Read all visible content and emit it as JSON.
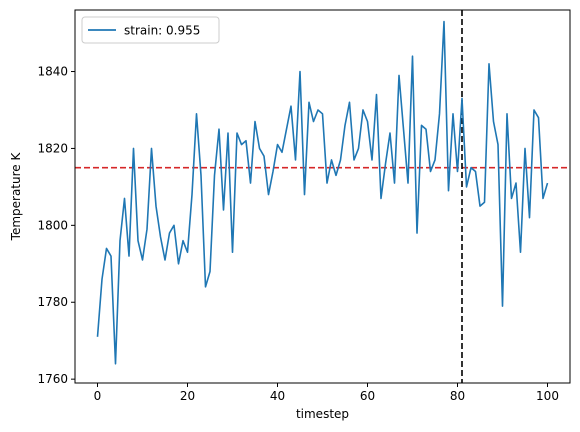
{
  "chart_data": {
    "type": "line",
    "title": "",
    "xlabel": "timestep",
    "ylabel": "Temperature K",
    "xlim": [
      -5,
      105
    ],
    "ylim": [
      1759,
      1856
    ],
    "xticks": [
      0,
      20,
      40,
      60,
      80,
      100
    ],
    "yticks": [
      1760,
      1780,
      1800,
      1820,
      1840
    ],
    "grid": false,
    "legend": {
      "placement": "top-left"
    },
    "series": [
      {
        "name": "strain: 0.955",
        "color": "#1f77b4",
        "x": [
          0,
          1,
          2,
          3,
          4,
          5,
          6,
          7,
          8,
          9,
          10,
          11,
          12,
          13,
          14,
          15,
          16,
          17,
          18,
          19,
          20,
          21,
          22,
          23,
          24,
          25,
          26,
          27,
          28,
          29,
          30,
          31,
          32,
          33,
          34,
          35,
          36,
          37,
          38,
          39,
          40,
          41,
          42,
          43,
          44,
          45,
          46,
          47,
          48,
          49,
          50,
          51,
          52,
          53,
          54,
          55,
          56,
          57,
          58,
          59,
          60,
          61,
          62,
          63,
          64,
          65,
          66,
          67,
          68,
          69,
          70,
          71,
          72,
          73,
          74,
          75,
          76,
          77,
          78,
          79,
          80,
          81,
          82,
          83,
          84,
          85,
          86,
          87,
          88,
          89,
          90,
          91,
          92,
          93,
          94,
          95,
          96,
          97,
          98,
          99,
          100
        ],
        "y": [
          1771,
          1786,
          1794,
          1792,
          1764,
          1796,
          1807,
          1792,
          1820,
          1796,
          1791,
          1799,
          1820,
          1805,
          1797,
          1791,
          1798,
          1800,
          1790,
          1796,
          1793,
          1808,
          1829,
          1813,
          1784,
          1788,
          1813,
          1825,
          1804,
          1824,
          1793,
          1824,
          1821,
          1822,
          1811,
          1827,
          1820,
          1818,
          1808,
          1814,
          1821,
          1819,
          1825,
          1831,
          1817,
          1840,
          1808,
          1832,
          1827,
          1830,
          1829,
          1811,
          1817,
          1813,
          1817,
          1826,
          1832,
          1817,
          1820,
          1830,
          1827,
          1817,
          1834,
          1807,
          1816,
          1824,
          1811,
          1839,
          1825,
          1811,
          1844,
          1798,
          1826,
          1825,
          1814,
          1817,
          1829,
          1853,
          1809,
          1829,
          1814,
          1833,
          1810,
          1815,
          1814,
          1805,
          1806,
          1842,
          1827,
          1821,
          1779,
          1829,
          1807,
          1811,
          1793,
          1820,
          1802,
          1830,
          1828,
          1807,
          1811
        ]
      }
    ],
    "reference_lines": [
      {
        "orientation": "horizontal",
        "value": 1815,
        "color": "#d62728",
        "style": "dashed"
      },
      {
        "orientation": "vertical",
        "value": 81,
        "color": "#000000",
        "style": "dashed"
      }
    ]
  }
}
